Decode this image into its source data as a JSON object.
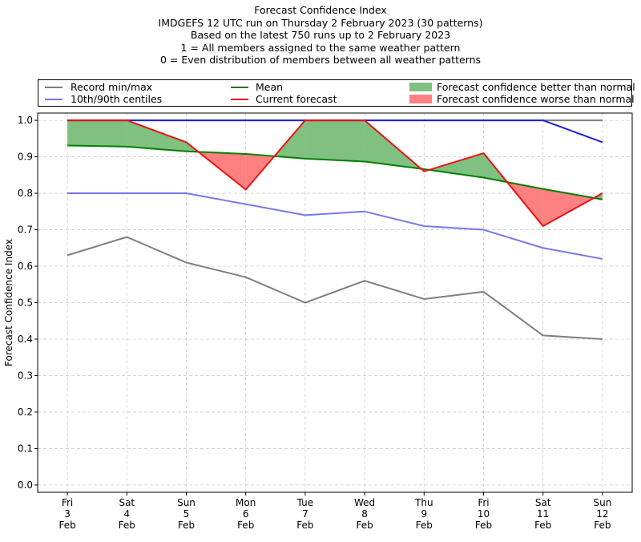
{
  "titles": [
    "Forecast Confidence Index",
    "IMDGEFS 12 UTC run on Thursday 2 February 2023 (30 patterns)",
    "Based on the latest 750 runs up to 2 February 2023",
    "1 = All members assigned to the same weather pattern",
    "0 = Even distribution of members between all weather patterns"
  ],
  "legend": {
    "record": "Record min/max",
    "centiles": "10th/90th centiles",
    "mean": "Mean",
    "current": "Current forecast",
    "better": "Forecast confidence better than normal",
    "worse": "Forecast confidence worse than normal"
  },
  "colors": {
    "record": "#7f7f7f",
    "centiles": "#7777ee",
    "max_line": "#2222cc",
    "mean": "#008000",
    "current": "#ee1111",
    "better": "#80c080",
    "worse": "#ff8080",
    "grid": "#cccccc"
  },
  "chart_data": {
    "type": "line",
    "ylabel": "Forecast Confidence Index",
    "ylim": [
      0,
      1.0
    ],
    "yticks": [
      "0.0",
      "0.1",
      "0.2",
      "0.3",
      "0.4",
      "0.5",
      "0.6",
      "0.7",
      "0.8",
      "0.9",
      "1.0"
    ],
    "grid": true,
    "legend_position": "top",
    "categories": [
      [
        "Fri",
        "3",
        "Feb"
      ],
      [
        "Sat",
        "4",
        "Feb"
      ],
      [
        "Sun",
        "5",
        "Feb"
      ],
      [
        "Mon",
        "6",
        "Feb"
      ],
      [
        "Tue",
        "7",
        "Feb"
      ],
      [
        "Wed",
        "8",
        "Feb"
      ],
      [
        "Thu",
        "9",
        "Feb"
      ],
      [
        "Fri",
        "10",
        "Feb"
      ],
      [
        "Sat",
        "11",
        "Feb"
      ],
      [
        "Sun",
        "12",
        "Feb"
      ]
    ],
    "series": [
      {
        "name": "Record min/max",
        "key": "record_max",
        "values": [
          1.0,
          1.0,
          1.0,
          1.0,
          1.0,
          1.0,
          1.0,
          1.0,
          1.0,
          1.0
        ]
      },
      {
        "name": "Record min/max",
        "key": "record_min",
        "values": [
          0.63,
          0.68,
          0.61,
          0.57,
          0.5,
          0.56,
          0.51,
          0.53,
          0.41,
          0.4
        ]
      },
      {
        "name": "10th/90th centiles",
        "key": "p90",
        "values": [
          1.0,
          1.0,
          1.0,
          1.0,
          1.0,
          1.0,
          1.0,
          1.0,
          1.0,
          0.94
        ]
      },
      {
        "name": "10th/90th centiles",
        "key": "p10",
        "values": [
          0.8,
          0.8,
          0.8,
          0.77,
          0.74,
          0.75,
          0.71,
          0.7,
          0.65,
          0.62
        ]
      },
      {
        "name": "Mean",
        "key": "mean",
        "values": [
          0.931,
          0.928,
          0.915,
          0.908,
          0.895,
          0.887,
          0.866,
          0.843,
          0.812,
          0.783
        ]
      },
      {
        "name": "Current forecast",
        "key": "current",
        "values": [
          1.0,
          1.0,
          0.94,
          0.81,
          1.0,
          1.0,
          0.86,
          0.91,
          0.71,
          0.8
        ]
      }
    ]
  }
}
